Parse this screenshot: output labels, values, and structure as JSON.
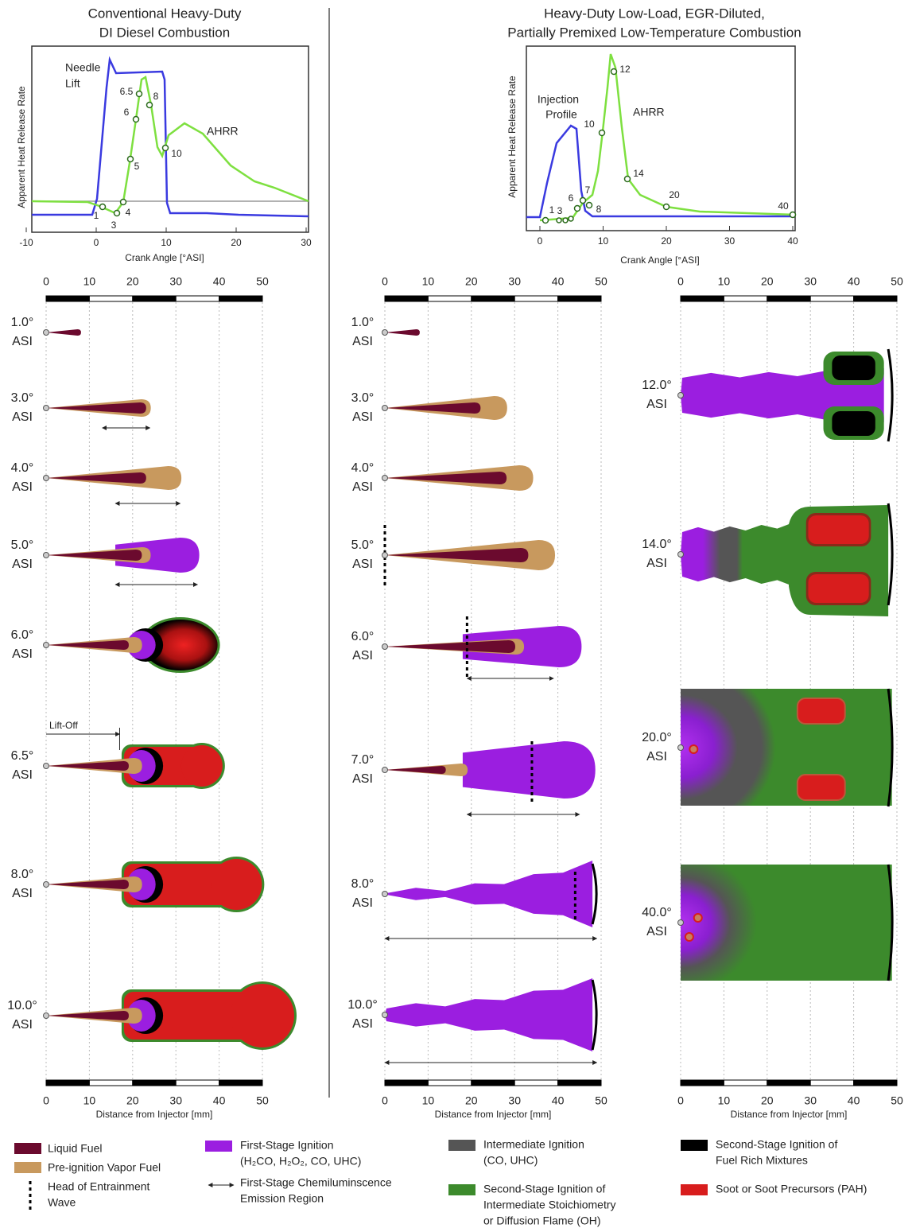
{
  "left_plot": {
    "title": [
      "Conventional Heavy-Duty",
      "DI Diesel Combustion"
    ],
    "ylabel": "Apparent Heat Release Rate",
    "xlabel": "Crank Angle [°ASI]",
    "xticks": [
      -10,
      0,
      10,
      20,
      30
    ],
    "curve_labels": [
      "Needle",
      "Lift",
      "AHRR"
    ],
    "points": [
      "1",
      "3",
      "4",
      "5",
      "6",
      "6.5",
      "8",
      "10"
    ]
  },
  "right_plot": {
    "title": [
      "Heavy-Duty Low-Load, EGR-Diluted,",
      "Partially Premixed Low-Temperature Combustion"
    ],
    "ylabel": "Apparent Heat Release Rate",
    "xlabel": "Crank Angle [°ASI]",
    "xticks": [
      0,
      10,
      20,
      30,
      40
    ],
    "curve_labels": [
      "Injection",
      "Profile",
      "AHRR"
    ],
    "points": [
      "1",
      "3",
      "6",
      "7",
      "8",
      "10",
      "12",
      "14",
      "20",
      "40"
    ]
  },
  "scale": {
    "ticks": [
      0,
      10,
      20,
      30,
      40,
      50
    ],
    "xlabel": "Distance from Injector [mm]"
  },
  "asi": "ASI",
  "column1": {
    "frames": [
      "1.0°",
      "3.0°",
      "4.0°",
      "5.0°",
      "6.0°",
      "6.5°",
      "8.0°",
      "10.0°"
    ],
    "lift_off": "Lift-Off"
  },
  "column2": {
    "frames": [
      "1.0°",
      "3.0°",
      "4.0°",
      "5.0°",
      "6.0°",
      "7.0°",
      "8.0°",
      "10.0°"
    ]
  },
  "column3": {
    "frames": [
      "12.0°",
      "14.0°",
      "20.0°",
      "40.0°"
    ]
  },
  "legend": [
    {
      "lines": [
        "Liquid Fuel"
      ]
    },
    {
      "lines": [
        "Pre-ignition Vapor Fuel"
      ]
    },
    {
      "lines": [
        "Head of Entrainment",
        "Wave"
      ]
    },
    {
      "lines": [
        "First-Stage Ignition",
        "(H₂CO, H₂O₂, CO, UHC)"
      ]
    },
    {
      "lines": [
        "First-Stage Chemiluminscence",
        "Emission Region"
      ]
    },
    {
      "lines": [
        "Intermediate Ignition",
        "(CO, UHC)"
      ]
    },
    {
      "lines": [
        "Second-Stage Ignition of",
        "Intermediate Stoichiometry",
        "or Diffusion Flame (OH)"
      ]
    },
    {
      "lines": [
        "Second-Stage Ignition of",
        "Fuel Rich Mixtures"
      ]
    },
    {
      "lines": [
        "Soot or Soot Precursors (PAH)"
      ]
    }
  ]
}
